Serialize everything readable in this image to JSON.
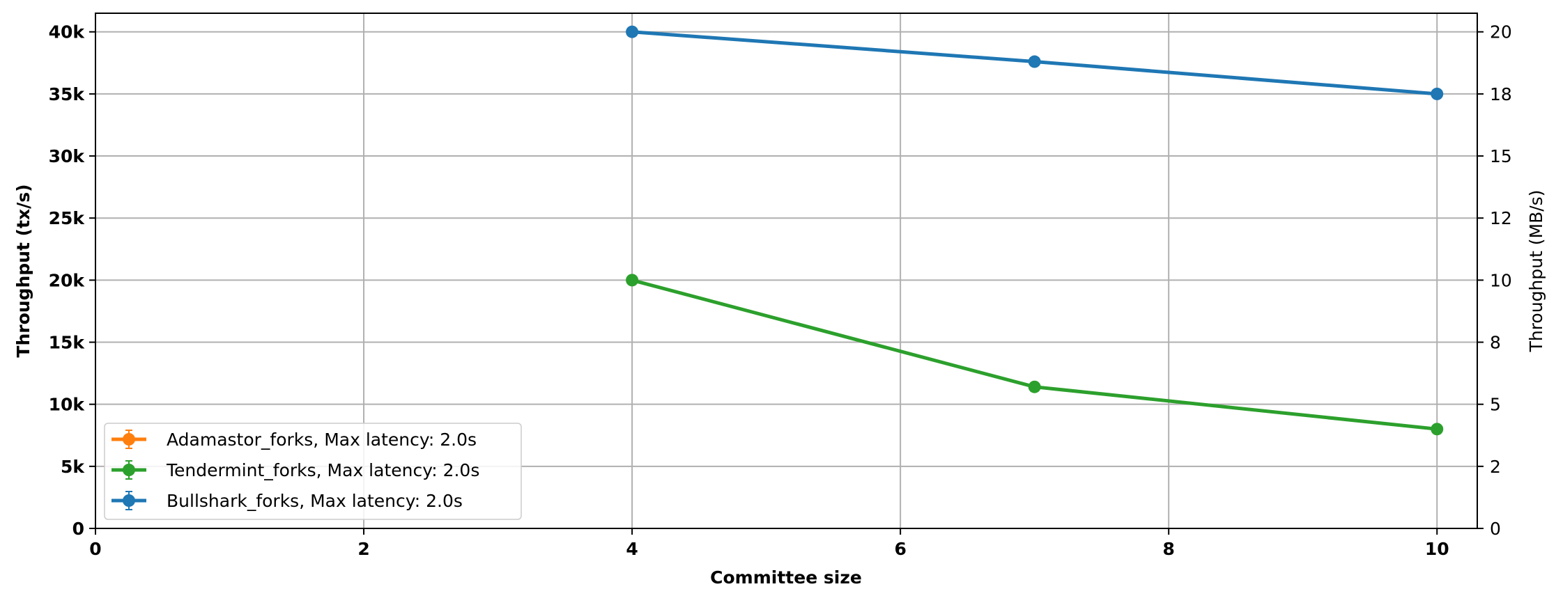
{
  "chart_data": {
    "type": "line",
    "title": "",
    "xlabel": "Committee size",
    "ylabel_left": "Throughput (tx/s)",
    "ylabel_right": "Throughput (MB/s)",
    "xlim": [
      0,
      10.3
    ],
    "ylim_left": [
      0,
      41500
    ],
    "ylim_right": [
      0,
      20.75
    ],
    "x_ticks": [
      0,
      2,
      4,
      6,
      8,
      10
    ],
    "x_tick_labels": [
      "0",
      "2",
      "4",
      "6",
      "8",
      "10"
    ],
    "y_left_ticks": [
      0,
      5000,
      10000,
      15000,
      20000,
      25000,
      30000,
      35000,
      40000
    ],
    "y_left_tick_labels": [
      "0",
      "5k",
      "10k",
      "15k",
      "20k",
      "25k",
      "30k",
      "35k",
      "40k"
    ],
    "y_right_ticks": [
      0,
      2.5,
      5,
      7.5,
      10,
      12.5,
      15,
      17.5,
      20
    ],
    "y_right_tick_labels": [
      "0",
      "2",
      "5",
      "8",
      "10",
      "12",
      "15",
      "18",
      "20"
    ],
    "grid": true,
    "legend_position": "lower-left",
    "series": [
      {
        "name": "Adamastor_forks, Max latency: 2.0s",
        "color": "#ff7f0e",
        "x": [],
        "values": []
      },
      {
        "name": "Tendermint_forks, Max latency: 2.0s",
        "color": "#2ca02c",
        "x": [
          4,
          7,
          10
        ],
        "values": [
          20000,
          11400,
          8000
        ]
      },
      {
        "name": "Bullshark_forks, Max latency: 2.0s",
        "color": "#1f77b4",
        "x": [
          4,
          7,
          10
        ],
        "values": [
          40000,
          37600,
          35000
        ]
      }
    ]
  }
}
